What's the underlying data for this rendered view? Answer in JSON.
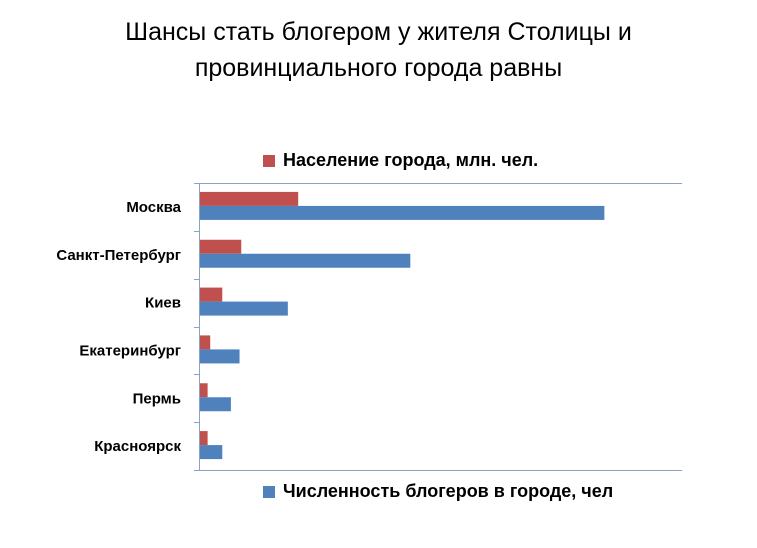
{
  "chart_data": {
    "type": "bar",
    "orientation": "horizontal",
    "title": "Шансы стать блогером у жителя Столицы и провинциального города равны",
    "categories": [
      "Москва",
      "Санкт-Петербург",
      "Киев",
      "Екатеринбург",
      "Пермь",
      "Красноярск"
    ],
    "series": [
      {
        "name": "Население города,  млн. чел.",
        "color": "#c0504d",
        "values": [
          11.5,
          4.9,
          2.7,
          1.3,
          1.0,
          1.0
        ]
      },
      {
        "name": "Численность блогеров в городе, чел",
        "color": "#4f81bd",
        "values": [
          47,
          24.5,
          10.3,
          4.7,
          3.7,
          2.7
        ]
      }
    ],
    "xlim": [
      0,
      56
    ],
    "axis_line_color": "#8da2c0",
    "legend_placement": "split: top and bottom",
    "grid": false
  }
}
